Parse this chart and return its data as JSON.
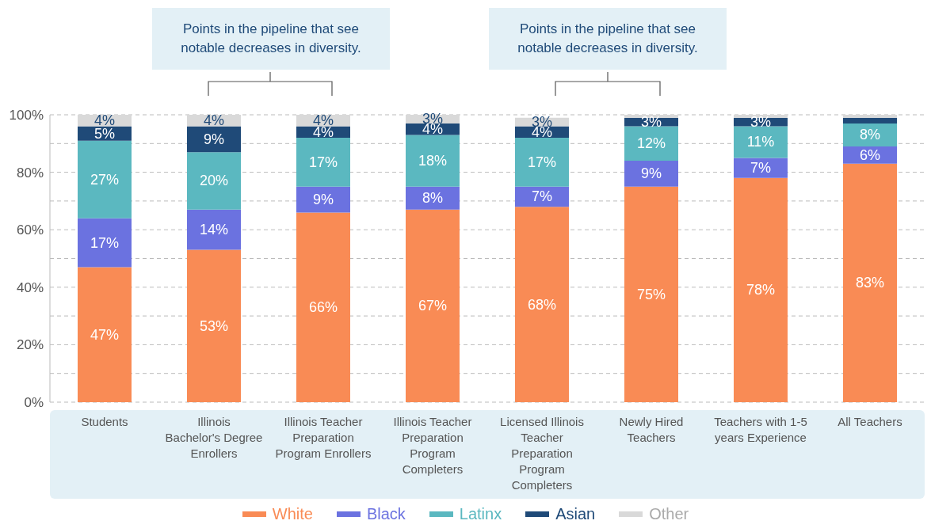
{
  "chart_data": {
    "type": "bar",
    "stacked": true,
    "categories": [
      "Students",
      "Illinois Bachelor's Degree Enrollers",
      "Illinois Teacher Preparation Program Enrollers",
      "Illinois Teacher Preparation Program Completers",
      "Licensed Illinois Teacher Preparation Program Completers",
      "Newly Hired Teachers",
      "Teachers with 1-5 years Experience",
      "All Teachers"
    ],
    "series": [
      {
        "name": "White",
        "color": "#f98b55",
        "values": [
          47,
          53,
          66,
          67,
          68,
          75,
          78,
          83
        ],
        "value_labels": [
          "47%",
          "53%",
          "66%",
          "67%",
          "68%",
          "75%",
          "78%",
          "83%"
        ]
      },
      {
        "name": "Black",
        "color": "#6b72e0",
        "values": [
          17,
          14,
          9,
          8,
          7,
          9,
          7,
          6
        ],
        "value_labels": [
          "17%",
          "14%",
          "9%",
          "8%",
          "7%",
          "9%",
          "7%",
          "6%"
        ]
      },
      {
        "name": "Latinx",
        "color": "#5bb8c0",
        "values": [
          27,
          20,
          17,
          18,
          17,
          12,
          11,
          8
        ],
        "value_labels": [
          "27%",
          "20%",
          "17%",
          "18%",
          "17%",
          "12%",
          "11%",
          "8%"
        ]
      },
      {
        "name": "Asian",
        "color": "#1f4a78",
        "values": [
          5,
          9,
          4,
          4,
          4,
          3,
          3,
          2
        ],
        "value_labels": [
          "5%",
          "9%",
          "4%",
          "4%",
          "4%",
          "3%",
          "3%",
          null
        ]
      },
      {
        "name": "Other",
        "color": "#d9d9d9",
        "values": [
          4,
          4,
          4,
          3,
          3,
          1,
          1,
          1
        ],
        "value_labels": [
          "4%",
          "4%",
          "4%",
          "3%",
          "3%",
          null,
          null,
          null
        ]
      }
    ],
    "ylim": [
      0,
      100
    ],
    "yticks": [
      {
        "value": 0,
        "label": "0%"
      },
      {
        "value": 10,
        "label": null
      },
      {
        "value": 20,
        "label": "20%"
      },
      {
        "value": 30,
        "label": null
      },
      {
        "value": 40,
        "label": "40%"
      },
      {
        "value": 50,
        "label": null
      },
      {
        "value": 60,
        "label": "60%"
      },
      {
        "value": 70,
        "label": null
      },
      {
        "value": 80,
        "label": "80%"
      },
      {
        "value": 90,
        "label": null
      },
      {
        "value": 100,
        "label": "100%"
      }
    ],
    "grid": "y",
    "legend": "bottom",
    "annotations": [
      "Points in the pipeline that see notable decreases in diversity.",
      "Points in the pipeline that see notable decreases in diversity."
    ]
  }
}
